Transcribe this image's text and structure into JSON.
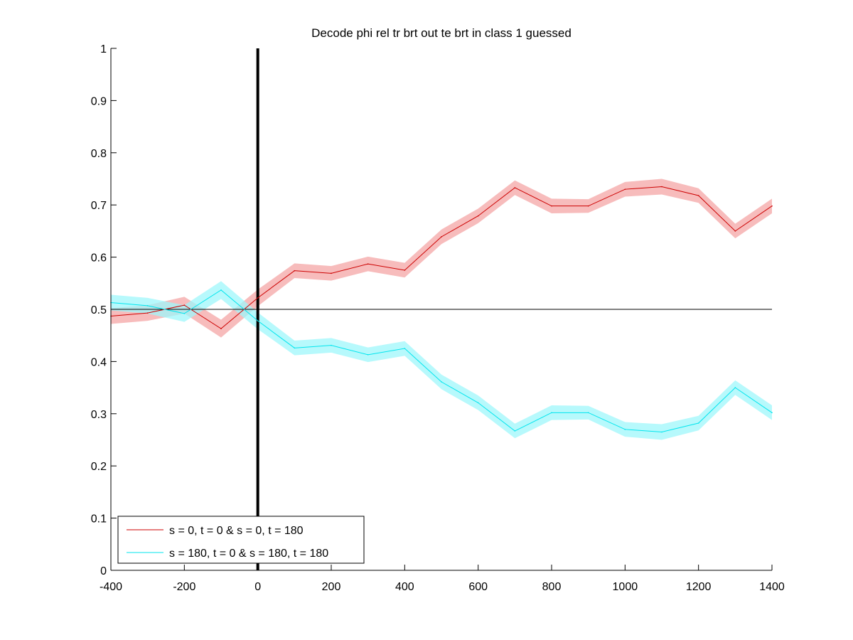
{
  "chart_data": {
    "type": "line",
    "title": "Decode phi rel tr brt out te brt in  class 1 guessed",
    "xlabel": "",
    "ylabel": "",
    "xlim": [
      -400,
      1400
    ],
    "ylim": [
      0,
      1
    ],
    "xticks": [
      -400,
      -200,
      0,
      200,
      400,
      600,
      800,
      1000,
      1200,
      1400
    ],
    "yticks": [
      0,
      0.1,
      0.2,
      0.3,
      0.4,
      0.5,
      0.6,
      0.7,
      0.8,
      0.9,
      1
    ],
    "xtick_labels": [
      "-400",
      "-200",
      "0",
      "200",
      "400",
      "600",
      "800",
      "1000",
      "1200",
      "1400"
    ],
    "ytick_labels": [
      "0",
      "0.1",
      "0.2",
      "0.3",
      "0.4",
      "0.5",
      "0.6",
      "0.7",
      "0.8",
      "0.9",
      "1"
    ],
    "grid": false,
    "reference_lines": {
      "horizontal_y": 0.5,
      "vertical_x": 0
    },
    "x": [
      -400,
      -300,
      -200,
      -100,
      0,
      100,
      200,
      300,
      400,
      500,
      600,
      700,
      800,
      900,
      1000,
      1100,
      1200,
      1300,
      1400
    ],
    "series": [
      {
        "name": "s = 0, t = 0 & s = 0, t = 180",
        "color": "#cc0000",
        "band_color": "#f4a5a5",
        "values": [
          0.487,
          0.493,
          0.508,
          0.463,
          0.522,
          0.574,
          0.569,
          0.587,
          0.575,
          0.639,
          0.679,
          0.733,
          0.698,
          0.698,
          0.73,
          0.735,
          0.718,
          0.65,
          0.698
        ],
        "error": [
          0.015,
          0.015,
          0.016,
          0.017,
          0.016,
          0.014,
          0.014,
          0.014,
          0.014,
          0.014,
          0.014,
          0.014,
          0.014,
          0.013,
          0.014,
          0.015,
          0.014,
          0.014,
          0.014
        ]
      },
      {
        "name": "s = 180, t = 0 & s = 180, t = 180",
        "color": "#00e5ee",
        "band_color": "#9ff7fb",
        "values": [
          0.513,
          0.507,
          0.492,
          0.537,
          0.478,
          0.426,
          0.431,
          0.413,
          0.425,
          0.361,
          0.321,
          0.267,
          0.302,
          0.302,
          0.27,
          0.265,
          0.282,
          0.35,
          0.302
        ],
        "error": [
          0.015,
          0.015,
          0.016,
          0.017,
          0.016,
          0.014,
          0.014,
          0.014,
          0.014,
          0.014,
          0.014,
          0.014,
          0.014,
          0.013,
          0.014,
          0.015,
          0.014,
          0.014,
          0.014
        ]
      }
    ],
    "legend": {
      "placement": "bottom-left",
      "entries": [
        "s = 0, t = 0 & s = 0, t = 180",
        "s = 180, t = 0 & s = 180, t = 180"
      ]
    }
  }
}
